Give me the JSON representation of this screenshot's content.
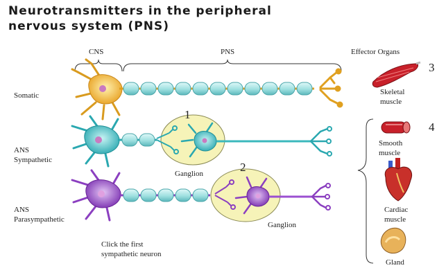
{
  "title": {
    "line1": "Neurotransmitters in the peripheral",
    "line2": "nervous system (PNS)"
  },
  "labels": {
    "cns": "CNS",
    "pns": "PNS",
    "effector_organs": "Effector Organs",
    "somatic": "Somatic",
    "ans_symp_1": "ANS",
    "ans_symp_2": "Sympathetic",
    "ans_para_1": "ANS",
    "ans_para_2": "Parasympathetic",
    "ganglion_1": "Ganglion",
    "ganglion_2": "Ganglion",
    "marker_1": "1",
    "marker_2": "2",
    "marker_3": "3",
    "marker_4": "4",
    "skeletal_1": "Skeletal",
    "skeletal_2": "muscle",
    "smooth_1": "Smooth",
    "smooth_2": "muscle",
    "cardiac_1": "Cardiac",
    "cardiac_2": "muscle",
    "gland": "Gland",
    "instruction_1": "Click the first",
    "instruction_2": "sympathetic neuron"
  },
  "colors": {
    "somatic_soma": "#f0b43c",
    "sympathetic_soma": "#46c3c3",
    "parasympathetic_soma": "#9b4fd0",
    "myelin": "#a8e6e6",
    "ganglion_fill": "#f6f3b8",
    "title": "#1a1a1a"
  },
  "icons": [
    "skeletal-muscle-icon",
    "smooth-muscle-icon",
    "heart-icon",
    "gland-icon"
  ]
}
